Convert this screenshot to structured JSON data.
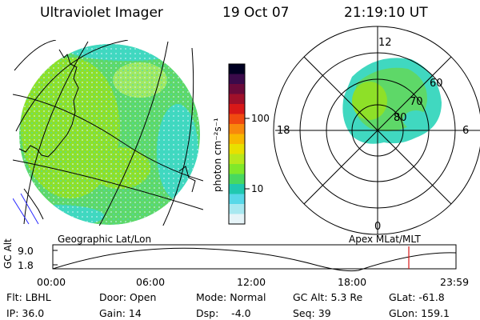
{
  "header": {
    "instrument": "Ultraviolet Imager",
    "date": "19 Oct 07",
    "time": "21:19:10 UT"
  },
  "colorbar": {
    "unit_label": "photon cm⁻²s⁻¹",
    "ticks": [
      "100",
      "10"
    ],
    "colors": [
      "#000022",
      "#3a0a4a",
      "#6a0a3a",
      "#a0102a",
      "#d81818",
      "#f04a10",
      "#f8880c",
      "#f8b800",
      "#e8e000",
      "#b8e81c",
      "#80e82a",
      "#48d860",
      "#20c8b0",
      "#58d8e8",
      "#a8e8f0",
      "#e6f4f8"
    ]
  },
  "geo_map": {
    "label": "Geographic Lat/Lon",
    "fill_colors": [
      "#8ee028",
      "#5ed868",
      "#40d8c0",
      "#a0e860",
      "#c8f0f4"
    ]
  },
  "polar_map": {
    "label": "Apex MLat/MLT",
    "mlt_labels": {
      "top": "12",
      "left": "18",
      "right": "6",
      "bottom": "0"
    },
    "lat_labels": [
      "60",
      "70",
      "80"
    ]
  },
  "orbit_plot": {
    "ylabel": "GC Alt",
    "yticks": [
      "9.0",
      "1.8"
    ],
    "xticks": [
      "00:00",
      "06:00",
      "12:00",
      "18:00",
      "23:59"
    ],
    "marker_color": "#d81818"
  },
  "info": {
    "flt": "Flt: LBHL",
    "ip": "IP: 36.0",
    "door": "Door: Open",
    "gain": "Gain: 14",
    "mode": "Mode: Normal",
    "dsp": "Dsp:    -4.0",
    "gc_alt": "GC Alt: 5.3 Re",
    "seq": "Seq: 39",
    "glat": "GLat: -61.8",
    "glon": "GLon: 159.1"
  }
}
